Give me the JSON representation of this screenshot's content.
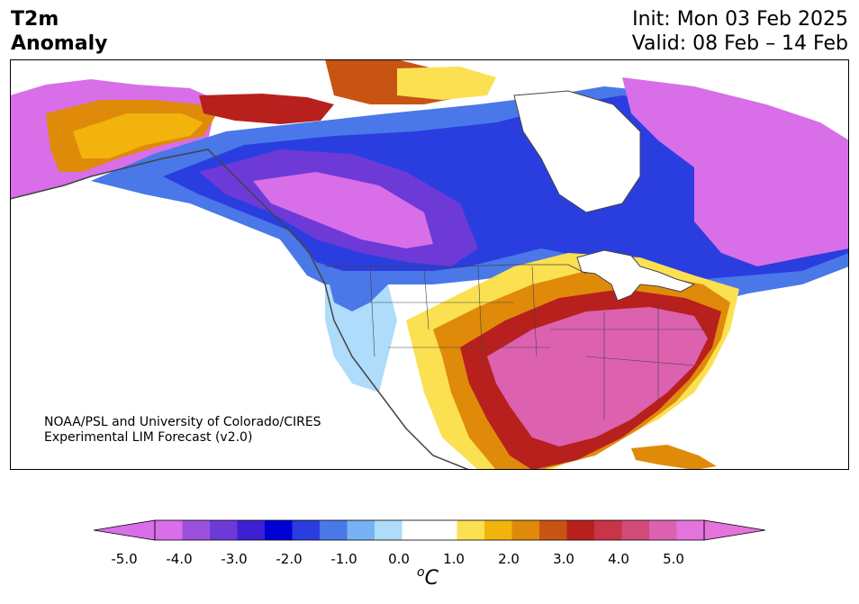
{
  "title": {
    "line1": "T2m",
    "line2": "Anomaly",
    "init": "Init: Mon 03 Feb 2025",
    "valid": "Valid: 08 Feb – 14 Feb"
  },
  "credit": {
    "line1": "NOAA/PSL and University of Colorado/CIRES",
    "line2": "Experimental LIM Forecast (v2.0)"
  },
  "colorbar": {
    "unit_sup": "o",
    "unit_main": "C",
    "ticks": [
      "-5.0",
      "-4.0",
      "-3.0",
      "-2.0",
      "-1.0",
      "0.0",
      "1.0",
      "2.0",
      "3.0",
      "4.0",
      "5.0"
    ],
    "colors": [
      "#d86ee8",
      "#9b50dc",
      "#6d3ad8",
      "#3f1fd2",
      "#0000d4",
      "#2a3ee0",
      "#4a78e8",
      "#78b2f4",
      "#aedcfa",
      "#ffffff",
      "#ffffff",
      "#fbe052",
      "#f2b40c",
      "#e08a0a",
      "#c85414",
      "#b8201e",
      "#c83448",
      "#d24a78",
      "#dc62b0",
      "#e474dc"
    ],
    "under_color": "#d86ee8",
    "over_color": "#e474dc"
  },
  "map": {
    "region": "North America",
    "colors": {
      "land_outline": "#444444",
      "strong_cold": "#d86ee8",
      "cold_purple": "#6d3ad8",
      "cold_blue": "#2a3ee0",
      "cool_blue": "#4a78e8",
      "light_blue": "#aedcfa",
      "warm_yellow": "#fbe052",
      "warm_orange": "#e08a0a",
      "warm_red": "#b8201e",
      "strong_warm": "#dc62b0"
    }
  }
}
